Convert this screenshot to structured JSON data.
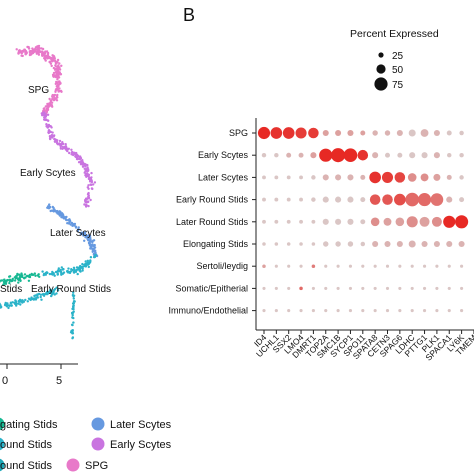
{
  "panel_b_label": "B",
  "umap": {
    "cluster_labels": [
      "SPG",
      "Early Scytes",
      "Later Scytes",
      "Early Round Stids"
    ],
    "left_edge_label": "Stids",
    "x_ticks": [
      "0",
      "5"
    ],
    "colors": {
      "spg": "#e879c9",
      "early_scytes": "#c974e0",
      "later_scytes": "#6699e0",
      "early_round": "#2bb3c9",
      "elongating": "#17b893"
    }
  },
  "legend": {
    "items": [
      {
        "label": "gating Stids",
        "color": "#17b893"
      },
      {
        "label": "Later Scytes",
        "color": "#6699e0"
      },
      {
        "label": "ound Stids",
        "color": "#2bb3c9"
      },
      {
        "label": "Early Scytes",
        "color": "#c974e0"
      },
      {
        "label": "ound Stids",
        "color": "#1fa8b8"
      },
      {
        "label": "SPG",
        "color": "#e879c9"
      }
    ]
  },
  "size_legend": {
    "title": "Percent Expressed",
    "levels": [
      25,
      50,
      75
    ]
  },
  "chart_data": {
    "type": "scatter",
    "title": "",
    "xlabel": "",
    "ylabel": "",
    "size_legend_title": "Percent Expressed",
    "size_levels": [
      25,
      50,
      75
    ],
    "rows": [
      "SPG",
      "Early Scytes",
      "Later Scytes",
      "Early Round Stids",
      "Later Round Stids",
      "Elongating Stids",
      "Sertoli/leydig",
      "Somatic/Epitherial",
      "Immuno/Endothelial"
    ],
    "genes": [
      "ID4",
      "UCHL1",
      "SSX2",
      "LMO4",
      "DMRT1",
      "TOP2A",
      "SMC1B",
      "SYCP1",
      "SPO11",
      "SPATA8",
      "CETN3",
      "SPAG6",
      "LDHC",
      "PTTG1",
      "PLK1",
      "SPACA1",
      "LY6K",
      "TMEM"
    ],
    "percent_expressed": [
      [
        60,
        55,
        55,
        50,
        45,
        15,
        15,
        15,
        10,
        12,
        12,
        15,
        20,
        25,
        15,
        10,
        8,
        8
      ],
      [
        8,
        8,
        10,
        10,
        15,
        70,
        80,
        75,
        45,
        15,
        10,
        10,
        15,
        15,
        15,
        8,
        8,
        8
      ],
      [
        6,
        6,
        6,
        6,
        8,
        15,
        15,
        15,
        10,
        55,
        50,
        45,
        30,
        25,
        20,
        10,
        8,
        8
      ],
      [
        6,
        6,
        6,
        6,
        8,
        15,
        15,
        15,
        10,
        45,
        45,
        55,
        75,
        70,
        65,
        15,
        10,
        8
      ],
      [
        6,
        6,
        6,
        6,
        6,
        15,
        15,
        15,
        10,
        30,
        25,
        30,
        50,
        40,
        40,
        60,
        70,
        65
      ],
      [
        5,
        5,
        5,
        5,
        5,
        12,
        12,
        12,
        8,
        15,
        15,
        15,
        20,
        15,
        15,
        15,
        15,
        15
      ],
      [
        5,
        4,
        4,
        4,
        5,
        4,
        4,
        4,
        4,
        4,
        4,
        4,
        4,
        4,
        4,
        4,
        4,
        4
      ],
      [
        4,
        4,
        4,
        5,
        4,
        4,
        4,
        4,
        4,
        4,
        4,
        4,
        4,
        4,
        4,
        4,
        4,
        4
      ],
      [
        4,
        4,
        4,
        4,
        4,
        4,
        4,
        4,
        4,
        4,
        4,
        4,
        4,
        4,
        4,
        4,
        4,
        4
      ]
    ],
    "avg_expression": [
      [
        0.95,
        0.9,
        0.9,
        0.85,
        0.85,
        0.3,
        0.3,
        0.3,
        0.3,
        0.2,
        0.2,
        0.2,
        0.1,
        0.2,
        0.2,
        0.1,
        0.1,
        0.1
      ],
      [
        0.1,
        0.1,
        0.2,
        0.2,
        0.3,
        0.95,
        0.95,
        0.95,
        0.9,
        0.2,
        0.1,
        0.1,
        0.1,
        0.1,
        0.2,
        0.1,
        0.1,
        0.1
      ],
      [
        0.1,
        0.1,
        0.1,
        0.1,
        0.1,
        0.2,
        0.2,
        0.2,
        0.2,
        0.9,
        0.85,
        0.8,
        0.4,
        0.4,
        0.3,
        0.2,
        0.1,
        0.1
      ],
      [
        0.1,
        0.1,
        0.1,
        0.1,
        0.1,
        0.1,
        0.1,
        0.1,
        0.1,
        0.7,
        0.7,
        0.75,
        0.6,
        0.6,
        0.55,
        0.2,
        0.1,
        0.1
      ],
      [
        0.1,
        0.1,
        0.1,
        0.1,
        0.1,
        0.1,
        0.1,
        0.1,
        0.1,
        0.4,
        0.3,
        0.3,
        0.4,
        0.3,
        0.4,
        0.95,
        0.95,
        0.9
      ],
      [
        0.1,
        0.1,
        0.1,
        0.1,
        0.1,
        0.1,
        0.1,
        0.1,
        0.1,
        0.2,
        0.2,
        0.2,
        0.2,
        0.2,
        0.2,
        0.2,
        0.2,
        0.2
      ],
      [
        0.3,
        0.1,
        0.1,
        0.1,
        0.5,
        0.1,
        0.1,
        0.1,
        0.1,
        0.1,
        0.1,
        0.1,
        0.1,
        0.1,
        0.1,
        0.1,
        0.1,
        0.1
      ],
      [
        0.1,
        0.1,
        0.1,
        0.6,
        0.1,
        0.1,
        0.1,
        0.1,
        0.1,
        0.1,
        0.1,
        0.1,
        0.1,
        0.1,
        0.1,
        0.1,
        0.1,
        0.1
      ],
      [
        0.1,
        0.1,
        0.1,
        0.1,
        0.1,
        0.1,
        0.1,
        0.1,
        0.1,
        0.1,
        0.1,
        0.1,
        0.1,
        0.1,
        0.1,
        0.1,
        0.1,
        0.1
      ]
    ],
    "low_color": "#d8d8d8",
    "high_color": "#e8201b"
  }
}
